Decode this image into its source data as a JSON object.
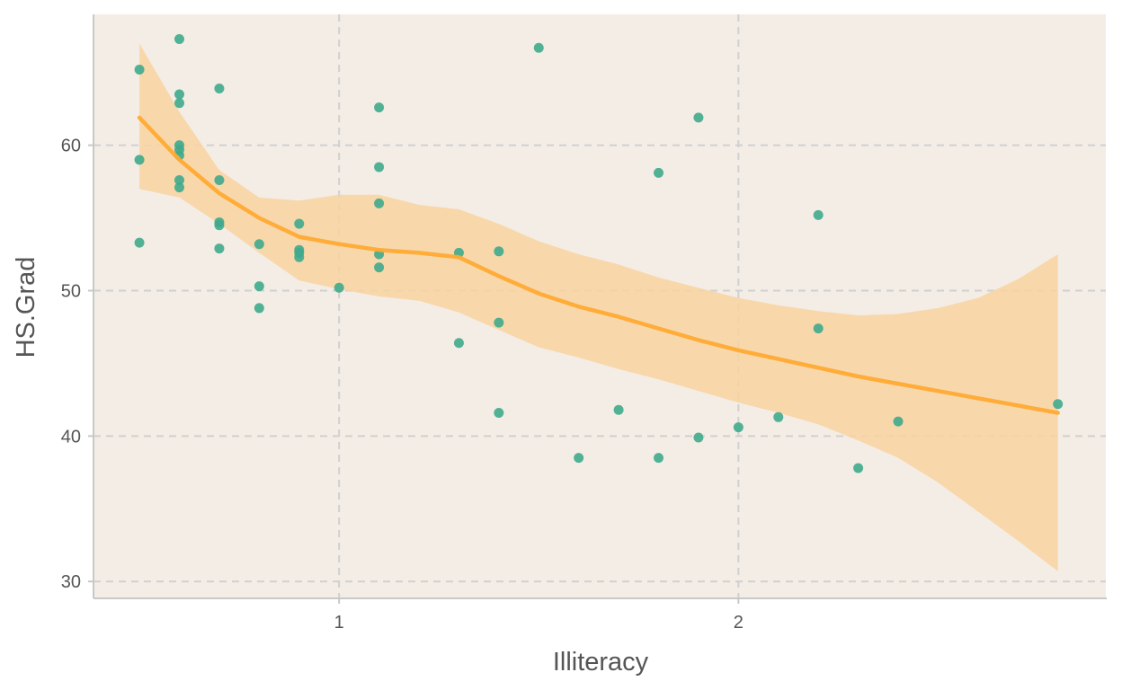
{
  "chart_data": {
    "type": "scatter",
    "xlabel": "Illiteracy",
    "ylabel": "HS.Grad",
    "xlim": [
      0.385,
      2.92
    ],
    "ylim": [
      28.9,
      69.0
    ],
    "x_ticks": [
      1,
      2
    ],
    "y_ticks": [
      30,
      40,
      50,
      60
    ],
    "grid": true,
    "colors": {
      "panel_background": "#f4ede6",
      "points": "#3faa8c",
      "smooth_line": "#ffaa33",
      "confidence_band": "#f8d3a0",
      "grid": "#d0d0d0",
      "axis": "#c8c8c8"
    },
    "points": [
      {
        "x": 0.5,
        "y": 65.2
      },
      {
        "x": 0.5,
        "y": 59.0
      },
      {
        "x": 0.5,
        "y": 53.3
      },
      {
        "x": 0.6,
        "y": 67.3
      },
      {
        "x": 0.6,
        "y": 63.5
      },
      {
        "x": 0.6,
        "y": 62.9
      },
      {
        "x": 0.6,
        "y": 60.0
      },
      {
        "x": 0.6,
        "y": 59.7
      },
      {
        "x": 0.6,
        "y": 59.3
      },
      {
        "x": 0.6,
        "y": 57.6
      },
      {
        "x": 0.6,
        "y": 57.1
      },
      {
        "x": 0.7,
        "y": 63.9
      },
      {
        "x": 0.7,
        "y": 57.6
      },
      {
        "x": 0.7,
        "y": 54.7
      },
      {
        "x": 0.7,
        "y": 54.5
      },
      {
        "x": 0.7,
        "y": 52.9
      },
      {
        "x": 0.8,
        "y": 53.2
      },
      {
        "x": 0.8,
        "y": 50.3
      },
      {
        "x": 0.8,
        "y": 48.8
      },
      {
        "x": 0.9,
        "y": 54.6
      },
      {
        "x": 0.9,
        "y": 52.8
      },
      {
        "x": 0.9,
        "y": 52.6
      },
      {
        "x": 0.9,
        "y": 52.3
      },
      {
        "x": 1.0,
        "y": 50.2
      },
      {
        "x": 1.1,
        "y": 62.6
      },
      {
        "x": 1.1,
        "y": 58.5
      },
      {
        "x": 1.1,
        "y": 56.0
      },
      {
        "x": 1.1,
        "y": 52.5
      },
      {
        "x": 1.1,
        "y": 51.6
      },
      {
        "x": 1.3,
        "y": 52.6
      },
      {
        "x": 1.3,
        "y": 46.4
      },
      {
        "x": 1.4,
        "y": 52.7
      },
      {
        "x": 1.4,
        "y": 47.8
      },
      {
        "x": 1.4,
        "y": 41.6
      },
      {
        "x": 1.5,
        "y": 66.7
      },
      {
        "x": 1.6,
        "y": 38.5
      },
      {
        "x": 1.7,
        "y": 41.8
      },
      {
        "x": 1.8,
        "y": 58.1
      },
      {
        "x": 1.8,
        "y": 38.5
      },
      {
        "x": 1.9,
        "y": 61.9
      },
      {
        "x": 1.9,
        "y": 39.9
      },
      {
        "x": 2.0,
        "y": 40.6
      },
      {
        "x": 2.1,
        "y": 41.3
      },
      {
        "x": 2.2,
        "y": 55.2
      },
      {
        "x": 2.2,
        "y": 47.4
      },
      {
        "x": 2.3,
        "y": 37.8
      },
      {
        "x": 2.4,
        "y": 41.0
      },
      {
        "x": 2.8,
        "y": 42.2
      }
    ],
    "smooth": {
      "x": [
        0.5,
        0.6,
        0.7,
        0.8,
        0.9,
        1.0,
        1.1,
        1.2,
        1.3,
        1.4,
        1.5,
        1.6,
        1.7,
        1.8,
        1.9,
        2.0,
        2.1,
        2.2,
        2.3,
        2.4,
        2.5,
        2.6,
        2.7,
        2.8
      ],
      "y": [
        61.9,
        59.0,
        56.7,
        55.0,
        53.7,
        53.2,
        52.8,
        52.6,
        52.3,
        51.0,
        49.8,
        48.9,
        48.2,
        47.4,
        46.6,
        45.9,
        45.3,
        44.7,
        44.1,
        43.6,
        43.1,
        42.6,
        42.1,
        41.6
      ],
      "lower": [
        57.0,
        56.4,
        54.6,
        52.6,
        50.7,
        50.1,
        49.6,
        49.3,
        48.5,
        47.3,
        46.1,
        45.4,
        44.6,
        43.9,
        43.1,
        42.3,
        41.6,
        40.8,
        39.7,
        38.5,
        36.8,
        34.8,
        32.8,
        30.7
      ],
      "upper": [
        67.0,
        62.3,
        58.3,
        56.4,
        56.2,
        56.6,
        56.6,
        55.9,
        55.6,
        54.6,
        53.4,
        52.5,
        51.8,
        50.9,
        50.2,
        49.5,
        49.0,
        48.6,
        48.3,
        48.4,
        48.8,
        49.5,
        50.8,
        52.5
      ]
    }
  }
}
